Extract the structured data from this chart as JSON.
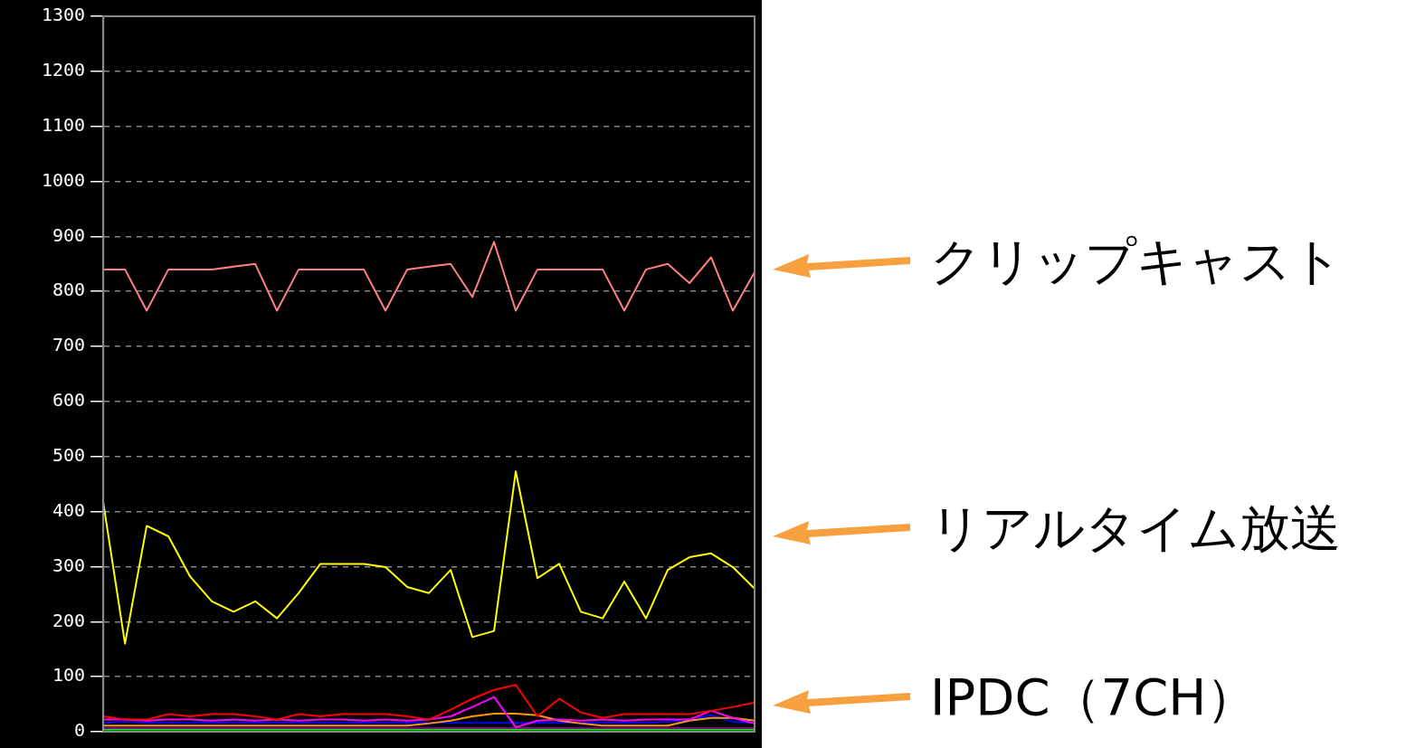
{
  "chart_data": {
    "type": "line",
    "categories": [
      null,
      null,
      null,
      null,
      null,
      null,
      null,
      null,
      null,
      null,
      null,
      null,
      null,
      null,
      null,
      null,
      null,
      null,
      null,
      null,
      null,
      null,
      null,
      null,
      null,
      null,
      null,
      null,
      null,
      null,
      null
    ],
    "series": [
      {
        "color": "#ff8080",
        "values": [
          840,
          840,
          765,
          840,
          840,
          840,
          845,
          850,
          765,
          840,
          840,
          840,
          840,
          765,
          840,
          845,
          850,
          790,
          890,
          765,
          840,
          840,
          840,
          840,
          765,
          840,
          850,
          815,
          862,
          765,
          835
        ]
      },
      {
        "color": "#ffff00",
        "values": [
          416,
          160,
          374,
          355,
          282,
          237,
          218,
          237,
          206,
          252,
          305,
          305,
          305,
          299,
          263,
          252,
          294,
          172,
          183,
          473,
          279,
          305,
          218,
          206,
          273,
          206,
          294,
          317,
          324,
          299,
          260
        ]
      },
      {
        "color": "#ff0000",
        "values": [
          28,
          22,
          22,
          32,
          28,
          32,
          32,
          28,
          22,
          32,
          28,
          32,
          32,
          32,
          28,
          22,
          40,
          60,
          76,
          85,
          28,
          60,
          35,
          25,
          32,
          32,
          32,
          32,
          38,
          45,
          53
        ]
      },
      {
        "color": "#ff00ff",
        "values": [
          22,
          22,
          20,
          22,
          22,
          20,
          22,
          20,
          22,
          20,
          22,
          22,
          20,
          22,
          20,
          22,
          28,
          45,
          63,
          8,
          20,
          22,
          20,
          22,
          20,
          22,
          22,
          22,
          38,
          25,
          15
        ]
      },
      {
        "color": "#ff9900",
        "values": [
          11,
          11,
          11,
          11,
          11,
          11,
          11,
          11,
          11,
          11,
          11,
          11,
          11,
          11,
          11,
          15,
          20,
          28,
          33,
          33,
          30,
          20,
          15,
          11,
          11,
          11,
          11,
          20,
          25,
          25,
          20
        ]
      },
      {
        "color": "#0000ff",
        "values": [
          16,
          18,
          16,
          16,
          16,
          16,
          16,
          16,
          16,
          16,
          16,
          16,
          16,
          16,
          16,
          16,
          16,
          16,
          16,
          16,
          16,
          16,
          16,
          16,
          16,
          16,
          18,
          22,
          30,
          18,
          16
        ]
      },
      {
        "color": "#800080",
        "values": [
          7,
          7,
          7,
          7,
          7,
          7,
          7,
          7,
          7,
          7,
          7,
          7,
          7,
          7,
          7,
          7,
          7,
          7,
          7,
          7,
          7,
          7,
          7,
          7,
          7,
          7,
          7,
          7,
          7,
          7,
          7
        ]
      },
      {
        "color": "#00ff00",
        "values": [
          4,
          4,
          4,
          4,
          4,
          4,
          4,
          4,
          4,
          4,
          4,
          4,
          4,
          4,
          4,
          4,
          4,
          4,
          4,
          4,
          4,
          4,
          4,
          4,
          4,
          4,
          4,
          4,
          4,
          4,
          4
        ]
      }
    ],
    "ylim": [
      0,
      1300
    ],
    "yticks": [
      0,
      100,
      200,
      300,
      400,
      500,
      600,
      700,
      800,
      900,
      1000,
      1100,
      1200,
      1300
    ],
    "grid": "y",
    "legend": false,
    "annotations": [
      "クリップキャスト",
      "リアルタイム放送",
      "IPDC（7CH）"
    ]
  }
}
